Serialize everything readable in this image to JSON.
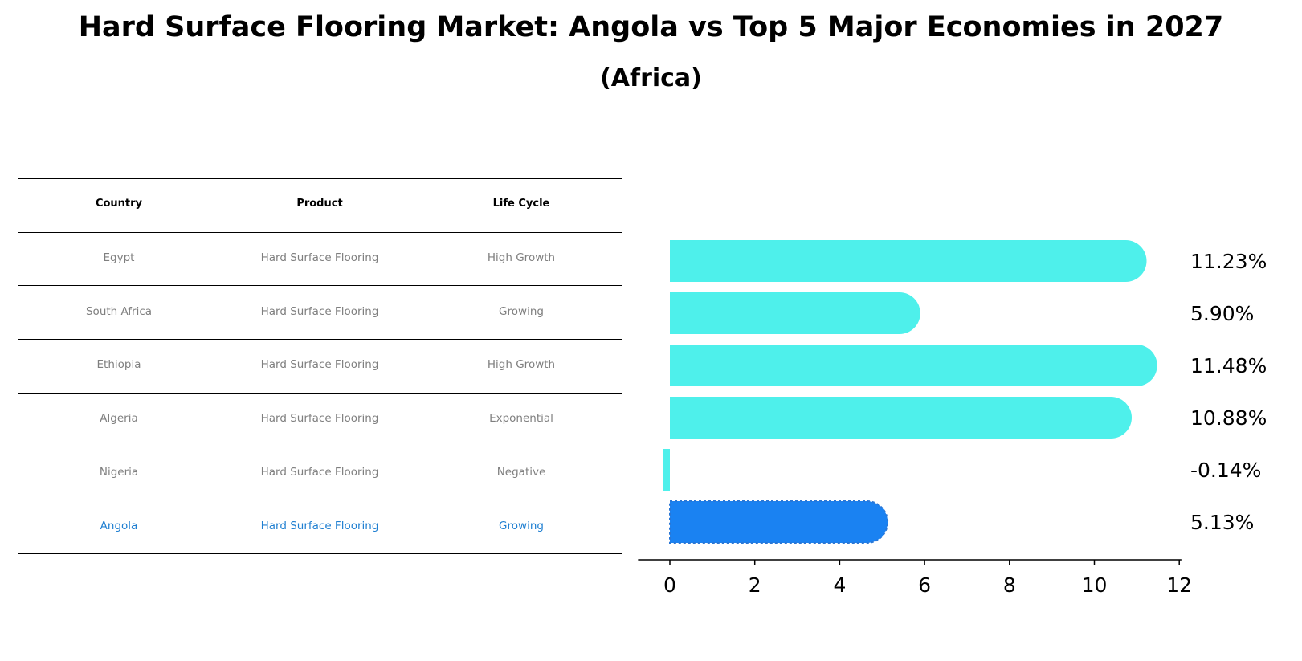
{
  "title": "Hard Surface Flooring Market: Angola vs Top 5 Major Economies in 2027",
  "subtitle": "(Africa)",
  "table": {
    "headers": [
      "Country",
      "Product",
      "Life Cycle"
    ],
    "rows": [
      [
        "Egypt",
        "Hard Surface Flooring",
        "High Growth"
      ],
      [
        "South Africa",
        "Hard Surface Flooring",
        "Growing"
      ],
      [
        "Ethiopia",
        "Hard Surface Flooring",
        "High Growth"
      ],
      [
        "Algeria",
        "Hard Surface Flooring",
        "Exponential"
      ],
      [
        "Nigeria",
        "Hard Surface Flooring",
        "Negative"
      ],
      [
        "Angola",
        "Hard Surface Flooring",
        "Growing"
      ]
    ],
    "highlight_row": 5
  },
  "chart_data": {
    "type": "bar",
    "orientation": "horizontal",
    "categories": [
      "Egypt",
      "South Africa",
      "Ethiopia",
      "Algeria",
      "Nigeria",
      "Angola"
    ],
    "values": [
      11.23,
      5.9,
      11.48,
      10.88,
      -0.14,
      5.13
    ],
    "labels": [
      "11.23%",
      "5.90%",
      "11.48%",
      "10.88%",
      "-0.14%",
      "5.13%"
    ],
    "xticks": [
      0,
      2,
      4,
      6,
      8,
      10,
      12
    ],
    "xlim": [
      -0.75,
      12.05
    ],
    "highlight_index": 5,
    "colors": {
      "default": "#4ef0eb",
      "highlight": "#1a82f2",
      "highlight_outline": "#2a77d6"
    }
  }
}
